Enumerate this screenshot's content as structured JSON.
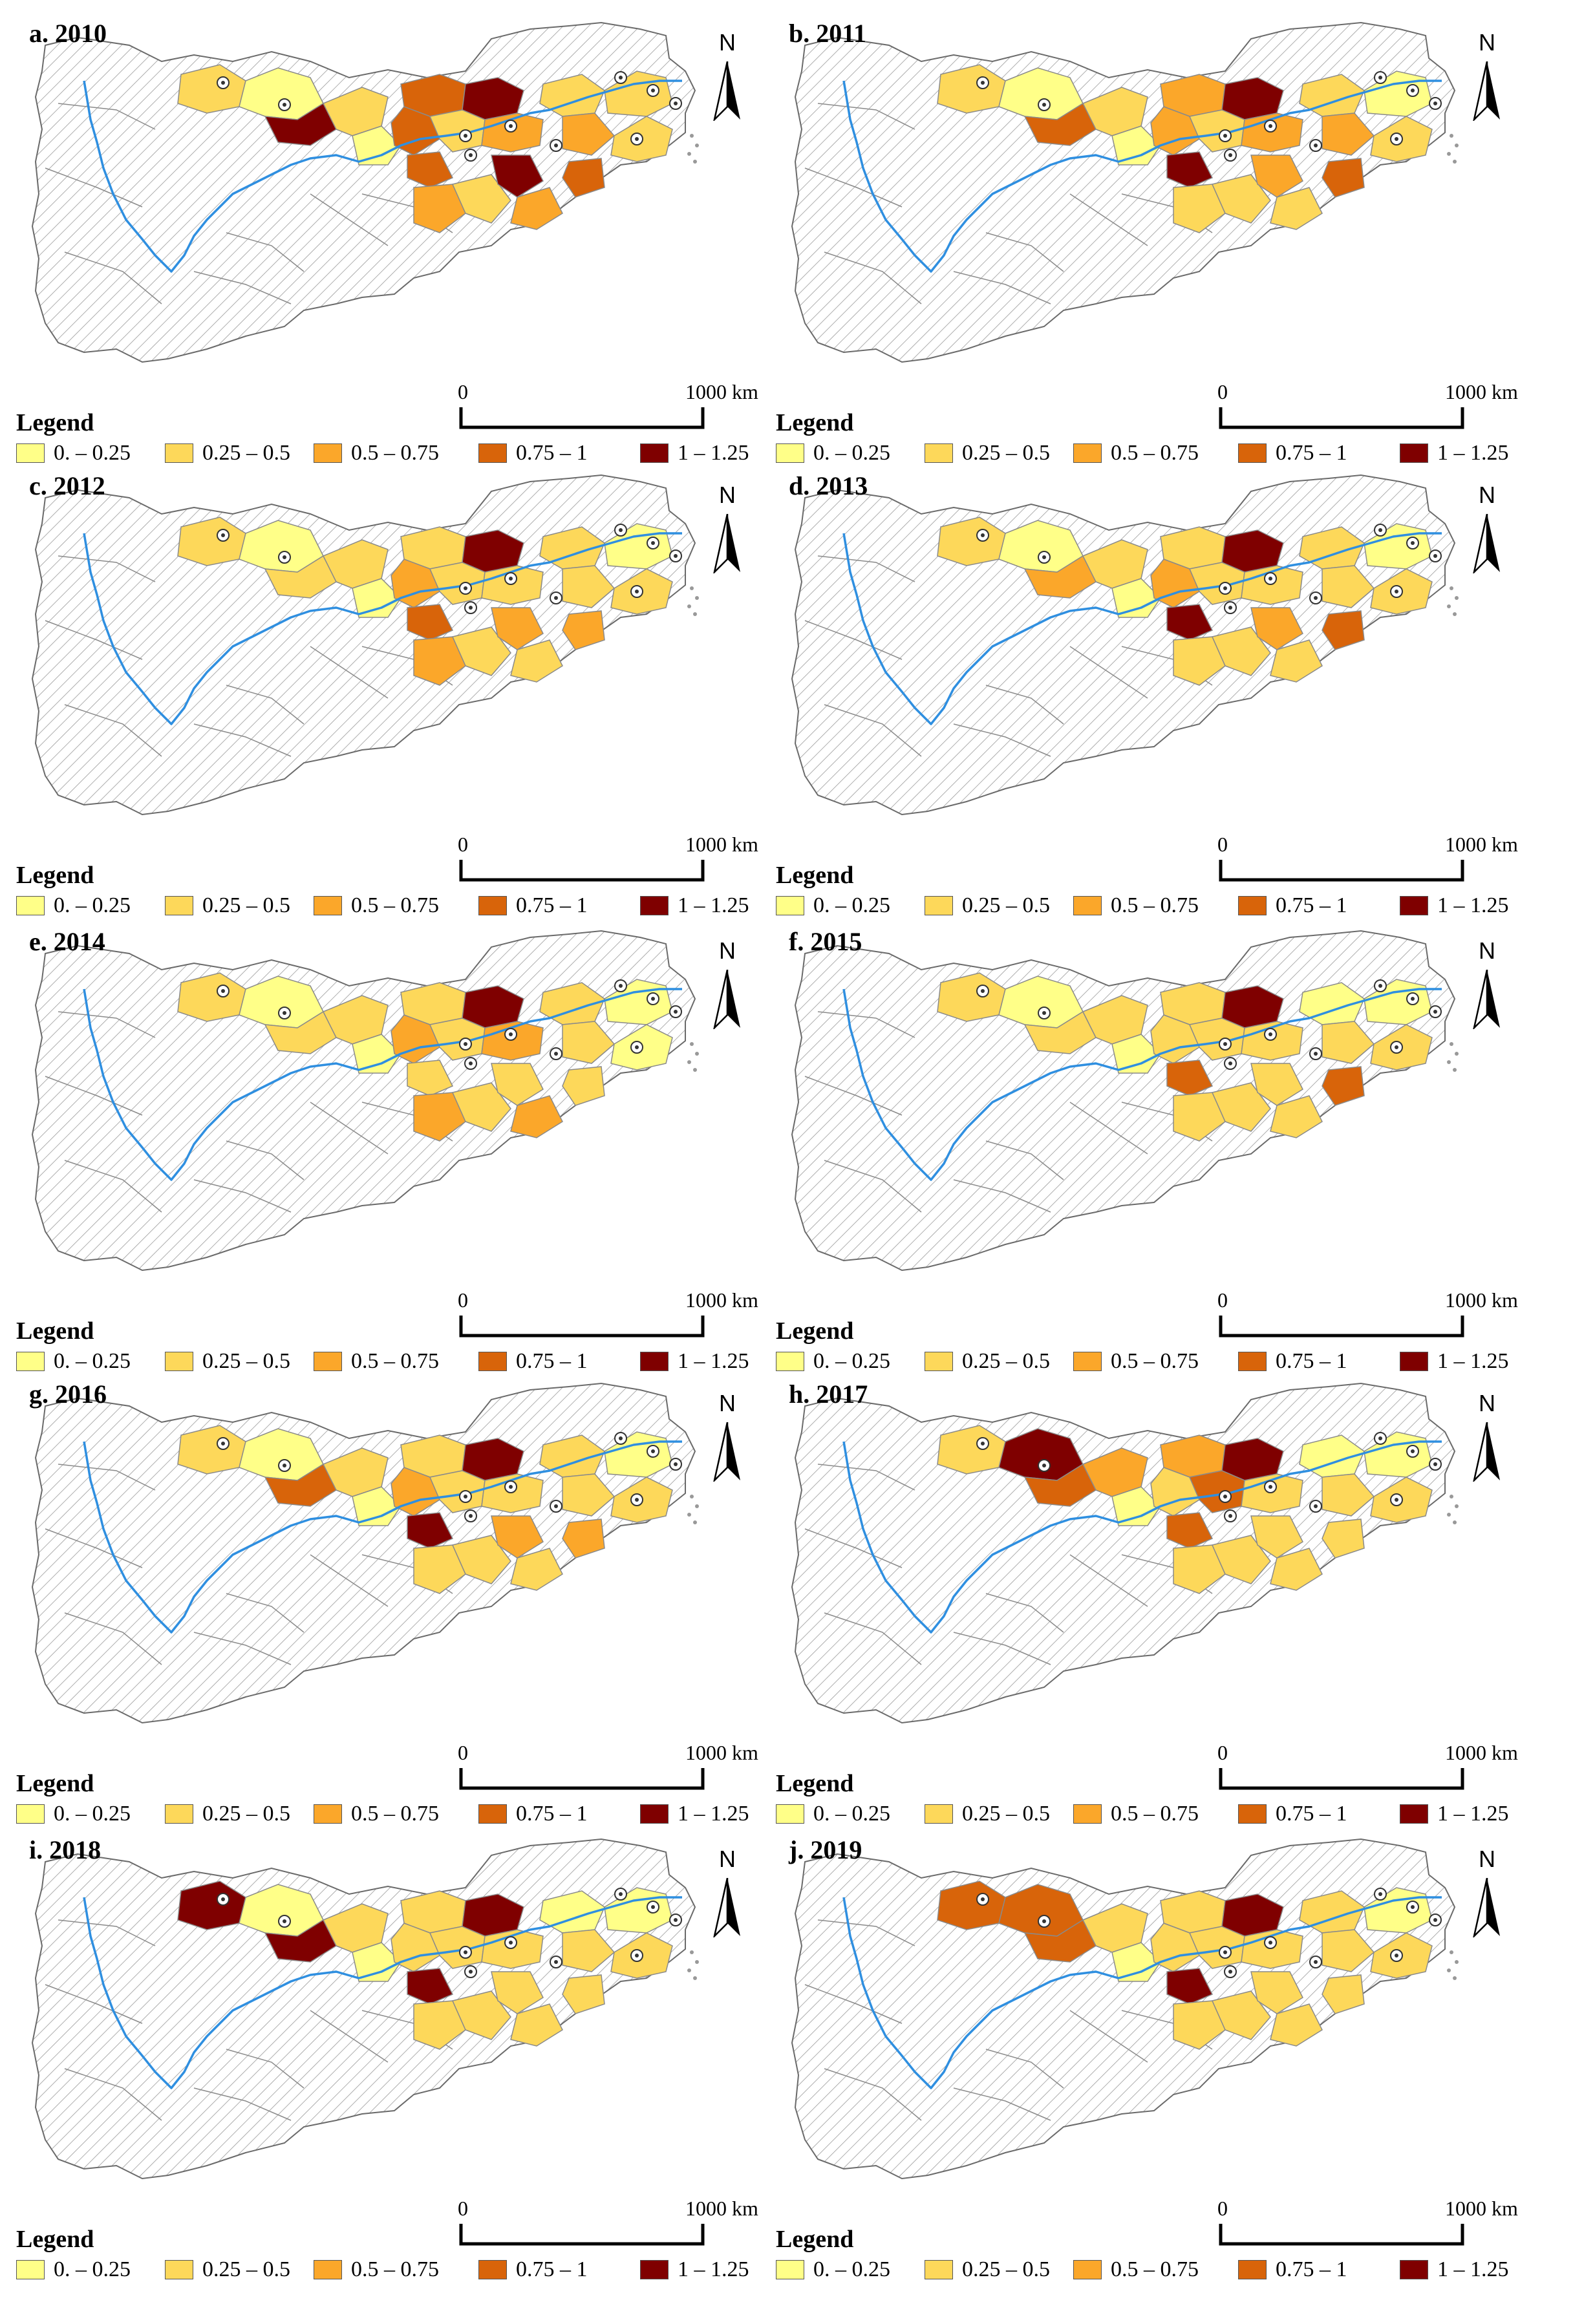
{
  "legend": {
    "title": "Legend",
    "classes": [
      {
        "label": "0. – 0.25",
        "color": "#ffff88"
      },
      {
        "label": "0.25 – 0.5",
        "color": "#fdd85a"
      },
      {
        "label": "0.5 – 0.75",
        "color": "#fba72a"
      },
      {
        "label": "0.75 – 1",
        "color": "#d8640a"
      },
      {
        "label": "1 – 1.25",
        "color": "#7f0000"
      }
    ]
  },
  "north_label": "N",
  "scale": {
    "start": "0",
    "end": "1000 km"
  },
  "colors": {
    "no_data_fill": "#ffffff",
    "no_data_hatch": "#9a9a9a",
    "boundary": "#8a8a8a",
    "river": "#2f8fe0"
  },
  "panels": [
    {
      "title": "a. 2010"
    },
    {
      "title": "b. 2011"
    },
    {
      "title": "c. 2012"
    },
    {
      "title": "d. 2013"
    },
    {
      "title": "e. 2014"
    },
    {
      "title": "f. 2015"
    },
    {
      "title": "g. 2016"
    },
    {
      "title": "h. 2017"
    },
    {
      "title": "i. 2018"
    },
    {
      "title": "j. 2019"
    }
  ]
}
